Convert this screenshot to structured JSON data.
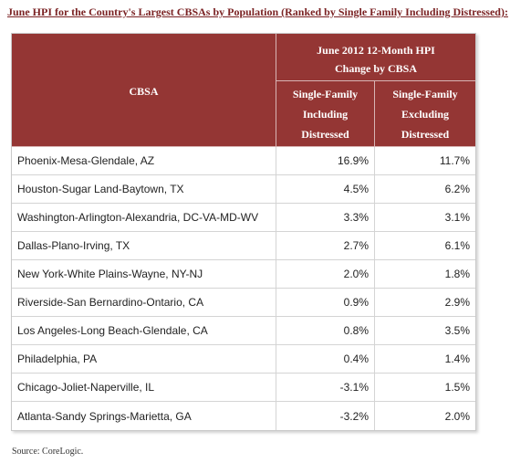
{
  "title": "June HPI for the Country's Largest CBSAs by Population (Ranked by Single Family Including Distressed):",
  "table": {
    "col_cbsa": "CBSA",
    "group_header": [
      "June 2012 12-Month HPI",
      "Change by CBSA"
    ],
    "col_including": [
      "Single-Family",
      "Including",
      "Distressed"
    ],
    "col_excluding": [
      "Single-Family",
      "Excluding",
      "Distressed"
    ],
    "rows": [
      {
        "cbsa": "Phoenix-Mesa-Glendale, AZ",
        "including": "16.9%",
        "excluding": "11.7%"
      },
      {
        "cbsa": "Houston-Sugar Land-Baytown, TX",
        "including": "4.5%",
        "excluding": "6.2%"
      },
      {
        "cbsa": "Washington-Arlington-Alexandria, DC-VA-MD-WV",
        "including": "3.3%",
        "excluding": "3.1%"
      },
      {
        "cbsa": "Dallas-Plano-Irving, TX",
        "including": "2.7%",
        "excluding": "6.1%"
      },
      {
        "cbsa": "New York-White Plains-Wayne, NY-NJ",
        "including": "2.0%",
        "excluding": "1.8%"
      },
      {
        "cbsa": "Riverside-San Bernardino-Ontario, CA",
        "including": "0.9%",
        "excluding": "2.9%"
      },
      {
        "cbsa": "Los Angeles-Long Beach-Glendale, CA",
        "including": "0.8%",
        "excluding": "3.5%"
      },
      {
        "cbsa": "Philadelphia, PA",
        "including": "0.4%",
        "excluding": "1.4%"
      },
      {
        "cbsa": "Chicago-Joliet-Naperville, IL",
        "including": "-3.1%",
        "excluding": "1.5%"
      },
      {
        "cbsa": "Atlanta-Sandy Springs-Marietta, GA",
        "including": "-3.2%",
        "excluding": "2.0%"
      }
    ]
  },
  "source": "Source: CoreLogic."
}
